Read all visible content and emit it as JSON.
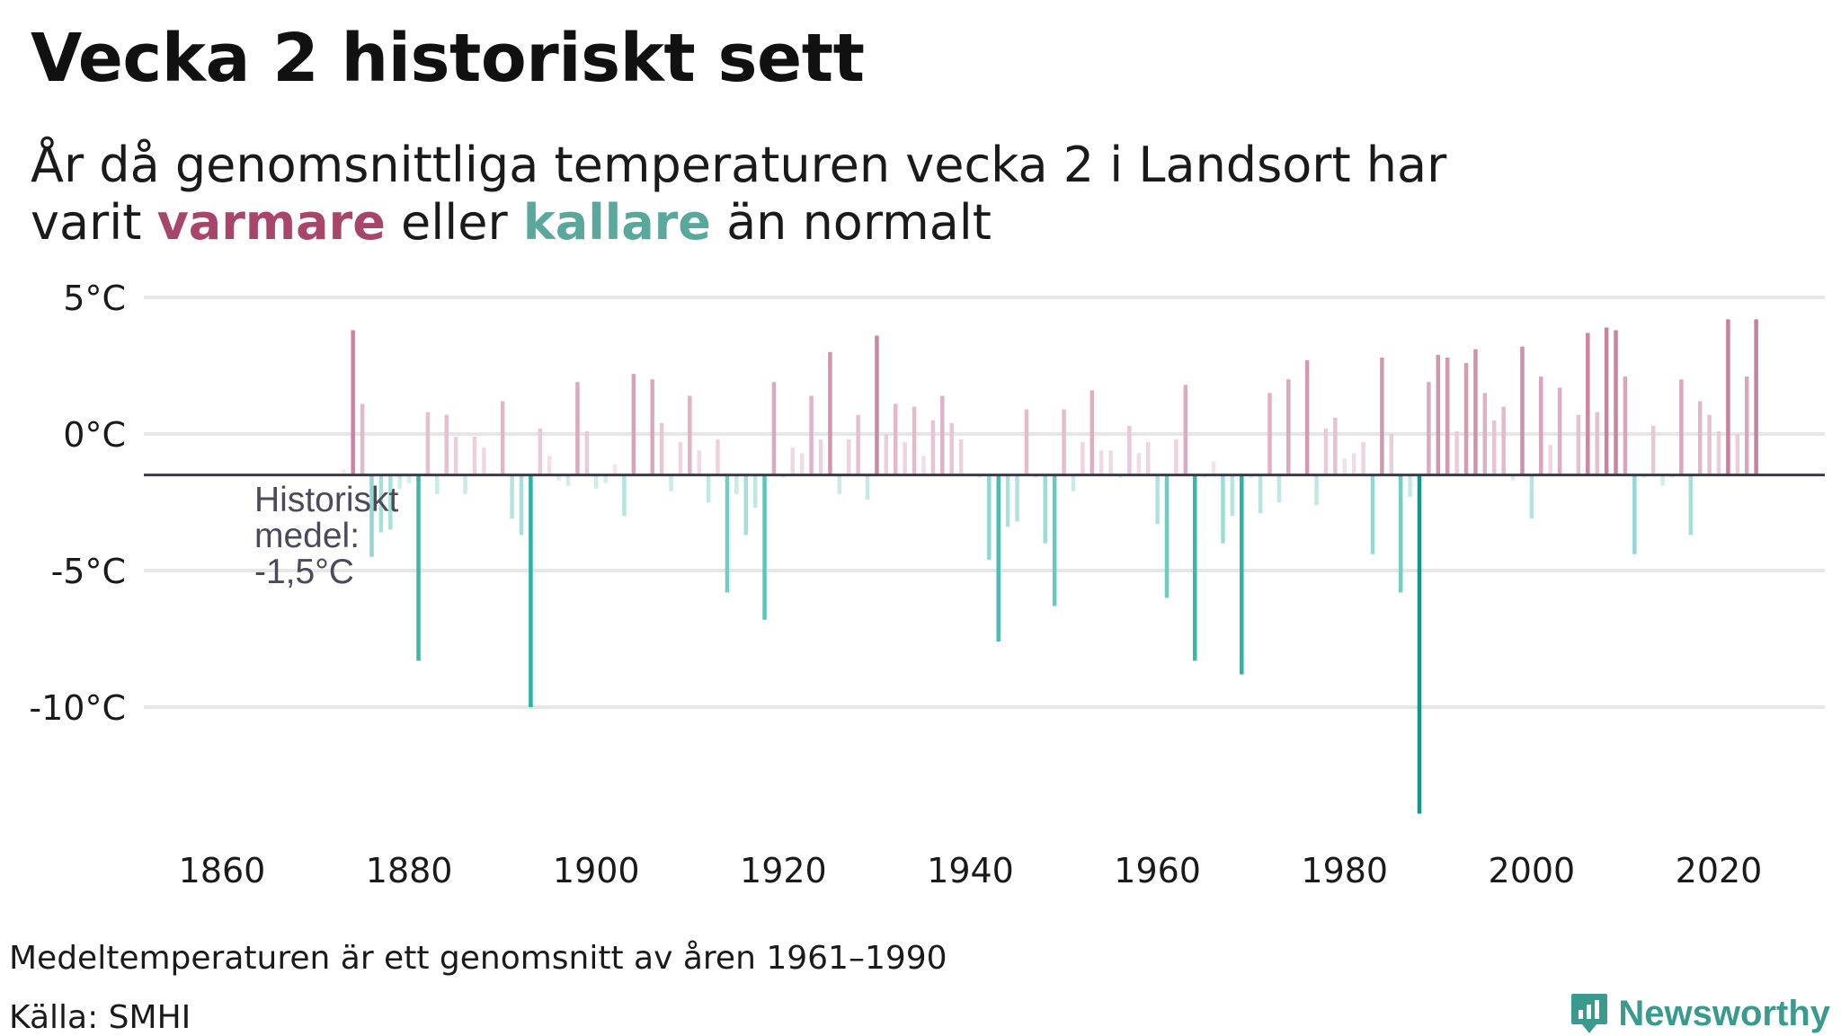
{
  "title": "Vecka 2 historiskt sett",
  "subtitle": {
    "line1": "År då genomsnittliga temperaturen vecka 2 i Landsort har",
    "prefix": "varit",
    "warm_word": "varmare",
    "middle": "eller",
    "cold_word": "kallare",
    "suffix": "än normalt"
  },
  "footnote": "Medeltemperaturen är ett genomsnitt av åren 1961–1990",
  "source": "Källa: SMHI",
  "brand": "Newsworthy",
  "colors": {
    "warm": "#a7456b",
    "warm_bar": "#c97f9e",
    "cold": "#5aa89b",
    "cold_bar": "#2ab3a3",
    "cold_extreme": "#0e9a8a",
    "baseline": "#3a3a48",
    "grid": "#e6e6e6",
    "annotation": "#4a4a5a",
    "brand": "#3a9a8d"
  },
  "chart_data": {
    "type": "bar",
    "title": "Vecka 2 historiskt sett",
    "ylabel": "",
    "xlabel": "",
    "baseline": -1.5,
    "ylim": [
      -14,
      5.6
    ],
    "xlim": [
      1852,
      2032
    ],
    "y_ticks": [
      5,
      0,
      -5,
      -10
    ],
    "y_tick_labels": [
      "5°C",
      "0°C",
      "-5°C",
      "-10°C"
    ],
    "x_ticks": [
      1860,
      1880,
      1900,
      1920,
      1940,
      1960,
      1980,
      2000,
      2020
    ],
    "x_tick_labels": [
      "1860",
      "1880",
      "1900",
      "1920",
      "1940",
      "1960",
      "1980",
      "2000",
      "2020"
    ],
    "annotation": {
      "line1": "Historiskt",
      "line2": "medel:",
      "line3": "-1,5°C"
    },
    "years": [
      1873,
      1874,
      1875,
      1876,
      1877,
      1878,
      1879,
      1880,
      1881,
      1882,
      1883,
      1884,
      1885,
      1886,
      1887,
      1888,
      1889,
      1890,
      1891,
      1892,
      1893,
      1894,
      1895,
      1896,
      1897,
      1898,
      1899,
      1900,
      1901,
      1902,
      1903,
      1904,
      1905,
      1906,
      1907,
      1908,
      1909,
      1910,
      1911,
      1912,
      1913,
      1914,
      1915,
      1916,
      1917,
      1918,
      1919,
      1920,
      1921,
      1922,
      1923,
      1924,
      1925,
      1926,
      1927,
      1928,
      1929,
      1930,
      1931,
      1932,
      1933,
      1934,
      1935,
      1936,
      1937,
      1938,
      1939,
      1940,
      1941,
      1942,
      1943,
      1944,
      1945,
      1946,
      1947,
      1948,
      1949,
      1950,
      1951,
      1952,
      1953,
      1954,
      1955,
      1956,
      1957,
      1958,
      1959,
      1960,
      1961,
      1962,
      1963,
      1964,
      1965,
      1966,
      1967,
      1968,
      1969,
      1970,
      1971,
      1972,
      1973,
      1974,
      1975,
      1976,
      1977,
      1978,
      1979,
      1980,
      1981,
      1982,
      1983,
      1984,
      1985,
      1986,
      1987,
      1988,
      1989,
      1990,
      1991,
      1992,
      1993,
      1994,
      1995,
      1996,
      1997,
      1998,
      1999,
      2000,
      2001,
      2002,
      2003,
      2004,
      2005,
      2006,
      2007,
      2008,
      2009,
      2010,
      2011,
      2012,
      2013,
      2014,
      2015,
      2016,
      2017,
      2018,
      2019,
      2020,
      2021,
      2022,
      2023,
      2024
    ],
    "values": [
      -1.3,
      3.8,
      1.1,
      -4.5,
      -3.6,
      -3.5,
      -2.0,
      -1.8,
      -8.3,
      0.8,
      -2.2,
      0.7,
      -0.1,
      -2.2,
      -0.1,
      -0.5,
      -1.4,
      1.2,
      -3.1,
      -3.7,
      -10.0,
      0.2,
      -0.8,
      -1.7,
      -1.9,
      1.9,
      0.1,
      -2.0,
      -1.8,
      -1.1,
      -3.0,
      2.2,
      -1.5,
      2.0,
      0.4,
      -2.1,
      -0.3,
      1.4,
      -0.6,
      -2.5,
      -0.2,
      -5.8,
      -2.2,
      -3.7,
      -2.7,
      -6.8,
      1.9,
      -1.6,
      -0.5,
      -0.7,
      1.4,
      -0.2,
      3.0,
      -2.2,
      -0.2,
      0.7,
      -2.4,
      3.6,
      0.0,
      1.1,
      -0.3,
      1.0,
      -0.8,
      0.5,
      1.4,
      0.4,
      -0.2,
      -1.5,
      -1.6,
      -4.6,
      -7.6,
      -3.4,
      -3.2,
      0.9,
      -1.6,
      -4.0,
      -6.3,
      0.9,
      -2.1,
      -0.3,
      1.6,
      -0.6,
      -0.6,
      -1.6,
      0.3,
      -0.7,
      -0.3,
      -3.3,
      -6.0,
      -0.2,
      1.8,
      -8.3,
      -1.6,
      -1.0,
      -4.0,
      -3.0,
      -8.8,
      -1.6,
      -2.9,
      1.5,
      -2.5,
      2.0,
      -1.5,
      2.7,
      -2.6,
      0.2,
      0.6,
      -0.9,
      -0.7,
      -0.3,
      -4.4,
      2.8,
      0.0,
      -5.8,
      -2.3,
      -13.9,
      1.9,
      2.9,
      2.8,
      0.1,
      2.6,
      3.1,
      1.5,
      0.5,
      1.0,
      -1.7,
      3.2,
      -3.1,
      2.1,
      -0.4,
      1.7,
      -1.5,
      0.7,
      3.7,
      0.8,
      3.9,
      3.8,
      2.1,
      -4.4,
      -1.6,
      0.3,
      -1.9,
      -1.6,
      2.0,
      -3.7,
      1.2,
      0.7,
      0.1,
      4.2,
      0.0,
      2.1,
      4.2
    ]
  }
}
